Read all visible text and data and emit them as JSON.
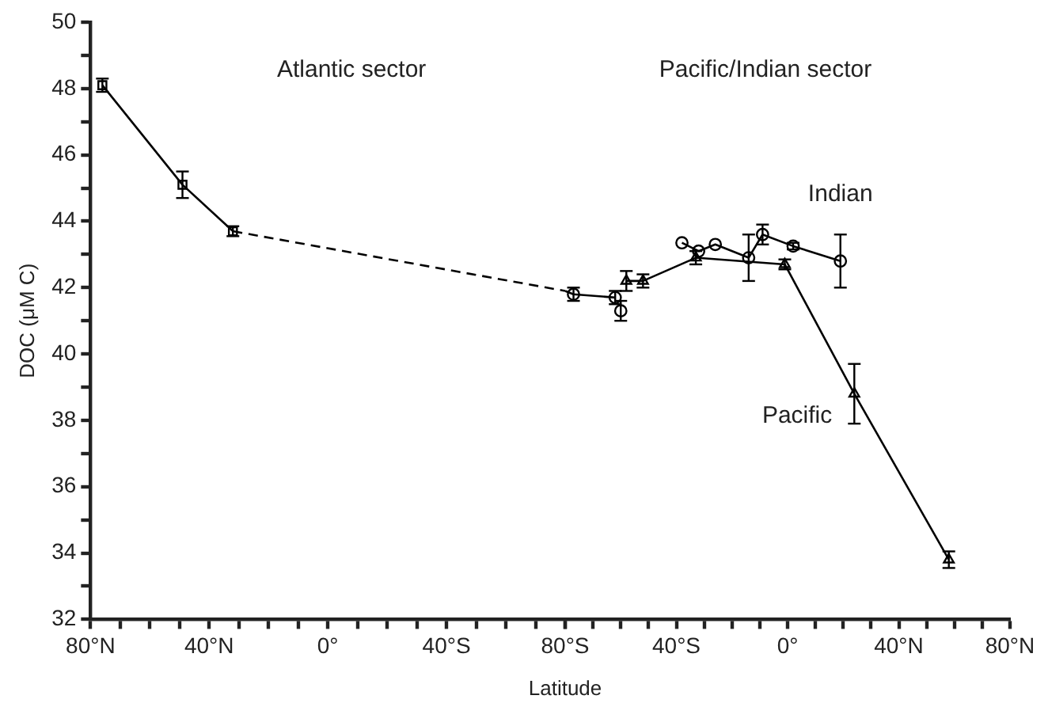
{
  "chart_data": [
    {
      "type": "line",
      "xlabel": "Latitude",
      "ylabel": "DOC (μM C)",
      "annotations": [
        "Atlantic sector"
      ],
      "xlim": [
        80,
        -80
      ],
      "ylim": [
        32,
        50
      ],
      "xticks": [
        {
          "value": 80,
          "label": "80°N"
        },
        {
          "value": 70,
          "label": null
        },
        {
          "value": 60,
          "label": null
        },
        {
          "value": 50,
          "label": null
        },
        {
          "value": 40,
          "label": "40°N"
        },
        {
          "value": 30,
          "label": null
        },
        {
          "value": 20,
          "label": null
        },
        {
          "value": 10,
          "label": null
        },
        {
          "value": 0,
          "label": "0°"
        },
        {
          "value": -10,
          "label": null
        },
        {
          "value": -20,
          "label": null
        },
        {
          "value": -30,
          "label": null
        },
        {
          "value": -40,
          "label": "40°S"
        },
        {
          "value": -50,
          "label": null
        },
        {
          "value": -60,
          "label": null
        },
        {
          "value": -70,
          "label": null
        },
        {
          "value": -80,
          "label": null
        }
      ],
      "yticks": [
        32,
        {
          "value": 33,
          "label": null
        },
        34,
        {
          "value": 35,
          "label": null
        },
        36,
        {
          "value": 37,
          "label": null
        },
        38,
        {
          "value": 39,
          "label": null
        },
        40,
        {
          "value": 41,
          "label": null
        },
        42,
        {
          "value": 43,
          "label": null
        },
        44,
        {
          "value": 45,
          "label": null
        },
        46,
        {
          "value": 47,
          "label": null
        },
        48,
        {
          "value": 49,
          "label": null
        },
        50
      ],
      "grid": false,
      "series": [
        {
          "color": "#000000",
          "marker": "square",
          "x": [
            76,
            49,
            32
          ],
          "values": [
            48.1,
            45.1,
            43.7
          ],
          "errors": [
            0.2,
            0.4,
            0.15
          ]
        },
        {
          "color": "#000000",
          "line_style": "dashed",
          "x": [
            32,
            -80
          ],
          "values": [
            43.7,
            41.9
          ]
        }
      ]
    },
    {
      "type": "line",
      "annotations": [
        "Pacific/Indian sector"
      ],
      "xlim": [
        -80,
        80
      ],
      "ylim": [
        32,
        50
      ],
      "tick_labels": "x",
      "xticks": [
        {
          "value": -80,
          "label": "80°S"
        },
        {
          "value": -70,
          "label": null
        },
        {
          "value": -60,
          "label": null
        },
        {
          "value": -50,
          "label": null
        },
        {
          "value": -40,
          "label": "40°S"
        },
        {
          "value": -30,
          "label": null
        },
        {
          "value": -20,
          "label": null
        },
        {
          "value": -10,
          "label": null
        },
        {
          "value": 0,
          "label": "0°"
        },
        {
          "value": 10,
          "label": null
        },
        {
          "value": 20,
          "label": null
        },
        {
          "value": 30,
          "label": null
        },
        {
          "value": 40,
          "label": "40°N"
        },
        {
          "value": 50,
          "label": null
        },
        {
          "value": 60,
          "label": null
        },
        {
          "value": 70,
          "label": null
        },
        {
          "value": 80,
          "label": "80°N"
        }
      ],
      "grid": false,
      "series": [
        {
          "color": "#000000",
          "line_style": "dashed",
          "x": [
            -80,
            -77
          ],
          "values": [
            41.9,
            41.8
          ]
        },
        {
          "color": "#000000",
          "marker": "circle",
          "x": [
            -77,
            -62
          ],
          "values": [
            41.8,
            41.7
          ],
          "errors": [
            0.2,
            0.2
          ]
        },
        {
          "type": "scatter",
          "color": "#000000",
          "marker": "circle",
          "x": [
            -60
          ],
          "values": [
            41.3
          ],
          "errors": [
            0.3
          ]
        },
        {
          "name": "Indian",
          "color": "#000000",
          "marker": "circle",
          "x": [
            -38,
            -32,
            -26,
            -14,
            -9,
            2,
            19
          ],
          "values": [
            43.35,
            43.1,
            43.3,
            42.9,
            43.6,
            43.25,
            42.8
          ],
          "errors": [
            null,
            null,
            null,
            0.7,
            0.3,
            0.1,
            0.8
          ]
        },
        {
          "name": "Pacific",
          "color": "#000000",
          "marker": "triangle",
          "x": [
            -58,
            -52,
            -33,
            -1,
            24,
            58
          ],
          "values": [
            42.2,
            42.2,
            42.9,
            42.7,
            38.8,
            33.8
          ],
          "errors": [
            0.3,
            0.2,
            0.2,
            0.15,
            0.9,
            0.25
          ]
        }
      ]
    }
  ]
}
